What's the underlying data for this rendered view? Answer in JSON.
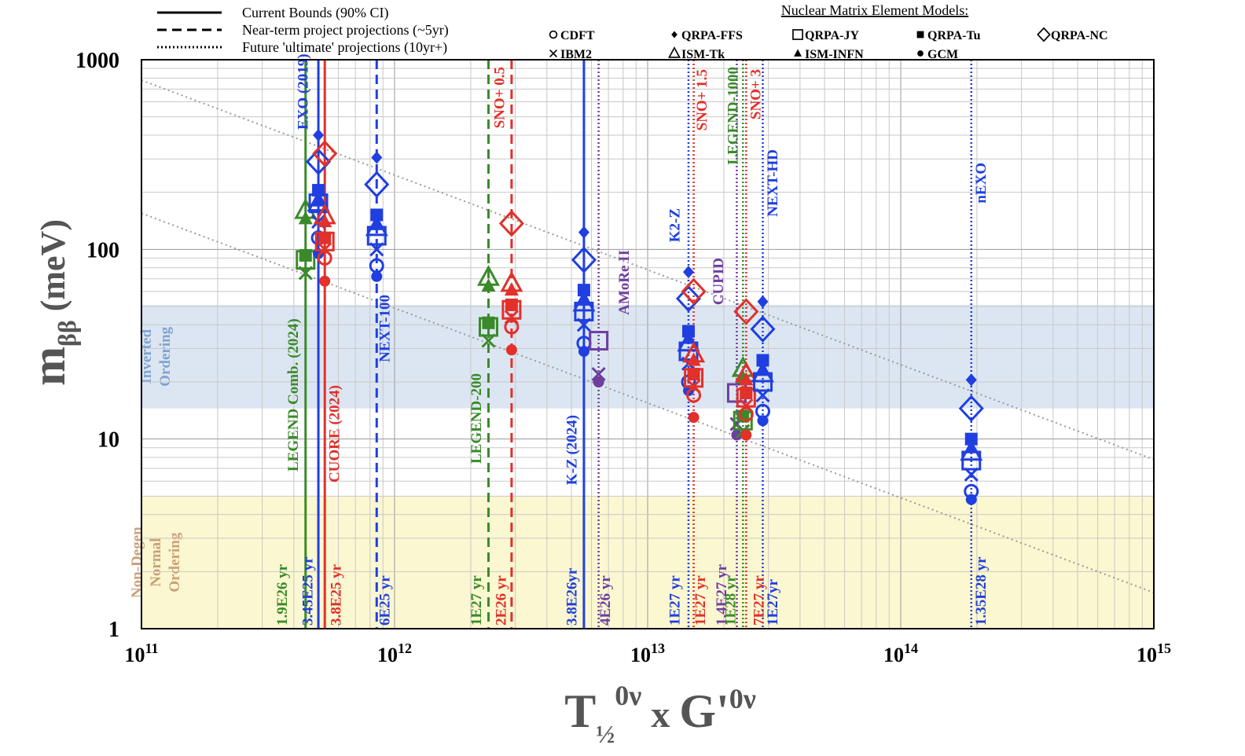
{
  "chart_data": {
    "type": "scatter",
    "xscale": "log",
    "yscale": "log",
    "xlim": [
      100000000000.0,
      1000000000000000.0
    ],
    "ylim": [
      1,
      1000
    ],
    "grid": true,
    "xlabel": {
      "main": "T",
      "sub": "½",
      "sup": "0ν",
      "times": "x",
      "g": "G'",
      "gsup": "0ν"
    },
    "ylabel": {
      "main": "m",
      "sub": "ββ",
      "unit": "(meV)"
    },
    "x_ticks": [
      {
        "value": 100000000000.0,
        "base": "10",
        "exp": "11"
      },
      {
        "value": 1000000000000.0,
        "base": "10",
        "exp": "12"
      },
      {
        "value": 10000000000000.0,
        "base": "10",
        "exp": "13"
      },
      {
        "value": 100000000000000.0,
        "base": "10",
        "exp": "14"
      },
      {
        "value": 1000000000000000.0,
        "base": "10",
        "exp": "15"
      }
    ],
    "y_ticks": [
      {
        "value": 1,
        "label": "1"
      },
      {
        "value": 10,
        "label": "10"
      },
      {
        "value": 100,
        "label": "100"
      },
      {
        "value": 1000,
        "label": "1000"
      }
    ],
    "colors": {
      "green": "#3a8a2a",
      "blue": "#1f3fe0",
      "red": "#e2302a",
      "purple": "#6e3ea0",
      "io_band": "#dce6f2",
      "no_band": "#fbf7d0",
      "io_text": "#7fa3cf",
      "no_text": "#c9a07a",
      "grid": "#c8c8c8",
      "trend": "#9a9a9a"
    },
    "bands": [
      {
        "name": "Inverted Ordering",
        "lines": [
          "Inverted",
          "Ordering"
        ],
        "ymin": 14.5,
        "ymax": 51,
        "color": "#dce6f2",
        "text_color": "#7fa3cf"
      },
      {
        "name": "Non-Degen Normal Ordering",
        "lines": [
          "Non-Degen",
          "Normal",
          "Ordering"
        ],
        "ymin": 1,
        "ymax": 5,
        "color": "#fbf7d0",
        "text_color": "#c9a07a"
      }
    ],
    "trend_lines": [
      {
        "x": [
          100000000000.0,
          1000000000000000.0
        ],
        "y": [
          780,
          7.8
        ]
      },
      {
        "x": [
          100000000000.0,
          1000000000000000.0
        ],
        "y": [
          155,
          1.55
        ]
      }
    ],
    "legend_lines": [
      {
        "style": "solid",
        "label": "Current Bounds (90% CI)"
      },
      {
        "style": "dashed",
        "label": "Near-term project projections (~5yr)"
      },
      {
        "style": "dotted",
        "label": "Future 'ultimate' projections (10yr+)"
      }
    ],
    "nme_legend": {
      "title": "Nuclear Matrix Element Models:",
      "models": [
        {
          "symbol": "circle-open",
          "label": "CDFT"
        },
        {
          "symbol": "diamond-filled",
          "label": "QRPA-FFS"
        },
        {
          "symbol": "square-open",
          "label": "QRPA-JY"
        },
        {
          "symbol": "square-filled",
          "label": "QRPA-Tu"
        },
        {
          "symbol": "diamond-open",
          "label": "QRPA-NC"
        },
        {
          "symbol": "cross",
          "label": "IBM2"
        },
        {
          "symbol": "triangle-open",
          "label": "ISM-Tk"
        },
        {
          "symbol": "triangle-filled",
          "label": "ISM-INFN"
        },
        {
          "symbol": "circle-filled",
          "label": "GCM"
        }
      ]
    },
    "experiments": [
      {
        "name": "LEGEND Comb. (2024)",
        "t_label": "1.9E26 yr",
        "x": 445000000000.0,
        "style": "solid",
        "color": "#3a8a2a",
        "points": {
          "cdft": null,
          "qrpa_ffs": null,
          "qrpa_jy": 88,
          "qrpa_tu": 93,
          "qrpa_nc": null,
          "ibm2": 75,
          "ism_tk": 160,
          "ism_infn": 145,
          "gcm": null
        }
      },
      {
        "name": "EXO (2019)",
        "t_label": "3.45E25 yr",
        "x": 500000000000.0,
        "style": "solid",
        "color": "#1f3fe0",
        "points": {
          "cdft": 115,
          "qrpa_ffs": 400,
          "qrpa_jy": 175,
          "qrpa_tu": 205,
          "qrpa_nc": 290,
          "ibm2": 140,
          "ism_tk": 175,
          "ism_infn": 180,
          "gcm": 95
        }
      },
      {
        "name": "CUORE (2024)",
        "t_label": "3.8E25 yr",
        "x": 530000000000.0,
        "style": "solid",
        "color": "#e2302a",
        "points": {
          "cdft": 90,
          "qrpa_ffs": null,
          "qrpa_jy": 110,
          "qrpa_tu": 115,
          "qrpa_nc": 320,
          "ibm2": 100,
          "ism_tk": 150,
          "ism_infn": 140,
          "gcm": 68
        }
      },
      {
        "name": "NEXT-100",
        "t_label": "6E25 yr",
        "x": 850000000000.0,
        "style": "dashed",
        "color": "#1f3fe0",
        "points": {
          "cdft": 82,
          "qrpa_ffs": 305,
          "qrpa_jy": 118,
          "qrpa_tu": 152,
          "qrpa_nc": 220,
          "ibm2": 100,
          "ism_tk": 130,
          "ism_infn": 135,
          "gcm": 72
        }
      },
      {
        "name": "LEGEND-200",
        "t_label": "1E27 yr",
        "x": 2350000000000.0,
        "style": "dashed",
        "color": "#3a8a2a",
        "points": {
          "cdft": null,
          "qrpa_ffs": null,
          "qrpa_jy": 39,
          "qrpa_tu": 41,
          "qrpa_nc": null,
          "ibm2": 33,
          "ism_tk": 71,
          "ism_infn": 64,
          "gcm": null
        }
      },
      {
        "name": "SNO+ 0.5",
        "t_label": "2E26 yr",
        "x": 2900000000000.0,
        "style": "dashed",
        "color": "#e2302a",
        "points": {
          "cdft": 39,
          "qrpa_ffs": null,
          "qrpa_jy": 48,
          "qrpa_tu": 51,
          "qrpa_nc": 137,
          "ibm2": 44,
          "ism_tk": 66,
          "ism_infn": 61,
          "gcm": 29.5
        }
      },
      {
        "name": "K-Z (2024)",
        "t_label": "3.8E26yr",
        "x": 5600000000000.0,
        "style": "solid",
        "color": "#1f3fe0",
        "points": {
          "cdft": 32,
          "qrpa_ffs": 123,
          "qrpa_jy": 47,
          "qrpa_tu": 61,
          "qrpa_nc": 88,
          "ibm2": 40,
          "ism_tk": 52,
          "ism_infn": 54,
          "gcm": 29
        }
      },
      {
        "name": "AMoRe II",
        "t_label": "4E26 yr",
        "x": 6400000000000.0,
        "style": "dotted",
        "color": "#6e3ea0",
        "points": {
          "cdft": null,
          "qrpa_ffs": null,
          "qrpa_jy": 33,
          "qrpa_tu": null,
          "qrpa_nc": null,
          "ibm2": 22,
          "ism_tk": null,
          "ism_infn": null,
          "gcm": 20
        }
      },
      {
        "name": "K2-Z",
        "t_label": "1E27 yr",
        "x": 14500000000000.0,
        "style": "dotted",
        "color": "#1f3fe0",
        "points": {
          "cdft": 20,
          "qrpa_ffs": 76,
          "qrpa_jy": 29,
          "qrpa_tu": 37,
          "qrpa_nc": 55,
          "ibm2": 25,
          "ism_tk": 32,
          "ism_infn": 34,
          "gcm": 18
        }
      },
      {
        "name": "SNO+ 1.5",
        "t_label": "1E27 yr",
        "x": 15200000000000.0,
        "style": "dotted",
        "color": "#e2302a",
        "points": {
          "cdft": 17,
          "qrpa_ffs": null,
          "qrpa_jy": 21,
          "qrpa_tu": 22,
          "qrpa_nc": 60,
          "ibm2": 19,
          "ism_tk": 28,
          "ism_infn": 26,
          "gcm": 13
        }
      },
      {
        "name": "CUPID",
        "t_label": "1.4E27 yr",
        "x": 22500000000000.0,
        "style": "dotted",
        "color": "#6e3ea0",
        "points": {
          "cdft": null,
          "qrpa_ffs": null,
          "qrpa_jy": 17.5,
          "qrpa_tu": null,
          "qrpa_nc": null,
          "ibm2": 12,
          "ism_tk": null,
          "ism_infn": null,
          "gcm": 10.5
        }
      },
      {
        "name": "LEGEND-1000",
        "t_label": "1E28 yr",
        "x": 23800000000000.0,
        "style": "dotted",
        "color": "#3a8a2a",
        "points": {
          "cdft": null,
          "qrpa_ffs": null,
          "qrpa_jy": 12.5,
          "qrpa_tu": 13.2,
          "qrpa_nc": null,
          "ibm2": 11,
          "ism_tk": 23.5,
          "ism_infn": 21,
          "gcm": null
        }
      },
      {
        "name": "SNO+ 3",
        "t_label": "7E27 yr",
        "x": 24500000000000.0,
        "style": "dotted",
        "color": "#e2302a",
        "points": {
          "cdft": 13.5,
          "qrpa_ffs": null,
          "qrpa_jy": 16.5,
          "qrpa_tu": 17.5,
          "qrpa_nc": 47,
          "ibm2": 15,
          "ism_tk": 22,
          "ism_infn": 20.5,
          "gcm": 10.5
        }
      },
      {
        "name": "NEXT-HD",
        "t_label": "1E27yr",
        "x": 28500000000000.0,
        "style": "dotted",
        "color": "#1f3fe0",
        "points": {
          "cdft": 14,
          "qrpa_ffs": 53,
          "qrpa_jy": 20,
          "qrpa_tu": 26,
          "qrpa_nc": 38,
          "ibm2": 17,
          "ism_tk": 22,
          "ism_infn": 23,
          "gcm": 12.5
        }
      },
      {
        "name": "nEXO",
        "t_label": "1.35E28 yr",
        "x": 190000000000000.0,
        "style": "dotted",
        "color": "#1f3fe0",
        "points": {
          "cdft": 5.3,
          "qrpa_ffs": 20.5,
          "qrpa_jy": 7.7,
          "qrpa_tu": 10,
          "qrpa_nc": 14.5,
          "ibm2": 6.5,
          "ism_tk": 8.5,
          "ism_infn": 9,
          "gcm": 4.8
        }
      }
    ]
  }
}
